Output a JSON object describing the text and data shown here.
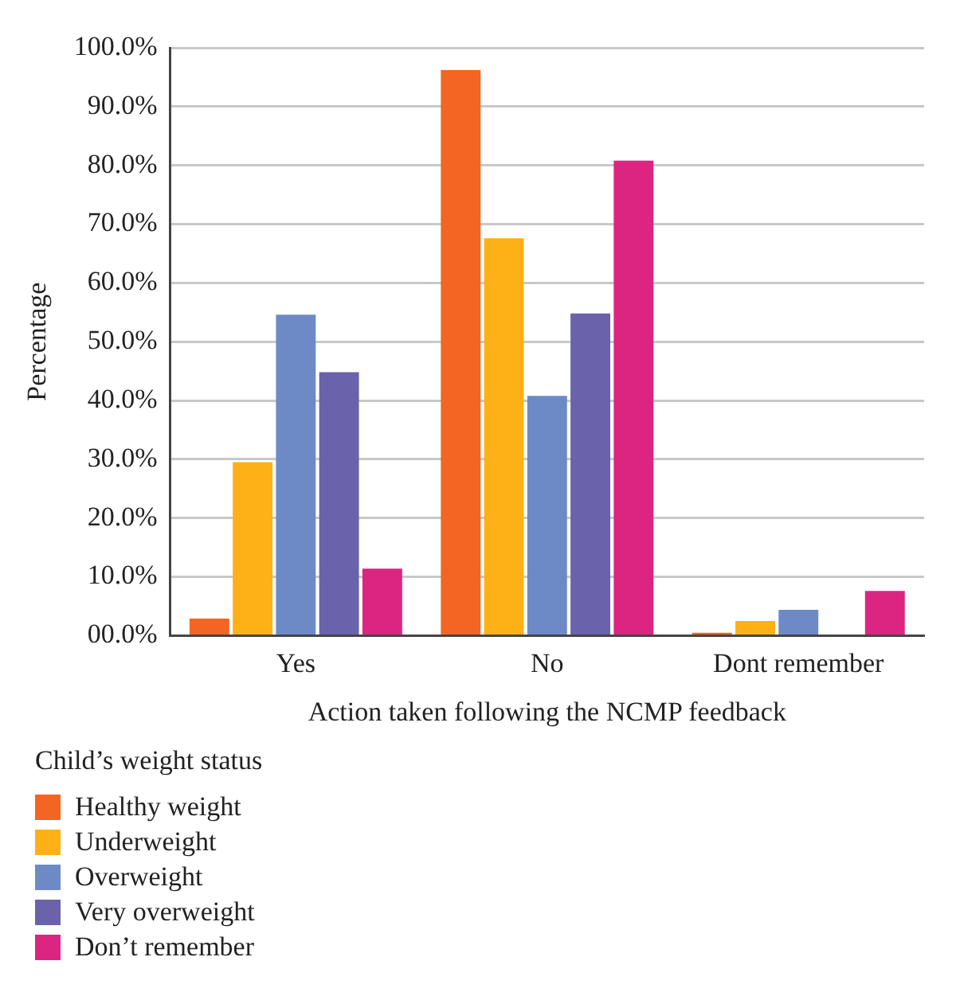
{
  "chart_data": {
    "type": "bar",
    "xlabel": "Action taken following the NCMP feedback",
    "ylabel": "Percentage",
    "legend_title": "Child’s weight status",
    "categories": [
      "Yes",
      "No",
      "Dont remember"
    ],
    "series": [
      {
        "name": "Healthy weight",
        "color": "#f26522",
        "values": [
          2.9,
          96.2,
          0.5
        ]
      },
      {
        "name": "Underweight",
        "color": "#fdb116",
        "values": [
          29.5,
          67.6,
          2.5
        ]
      },
      {
        "name": "Overweight",
        "color": "#6e8ac6",
        "values": [
          54.6,
          40.8,
          4.4
        ]
      },
      {
        "name": "Very overweight",
        "color": "#6a62aa",
        "values": [
          44.8,
          54.8,
          0
        ]
      },
      {
        "name": "Don’t remember",
        "color": "#dc2580",
        "values": [
          11.4,
          80.8,
          7.6
        ]
      }
    ],
    "ylim": [
      0,
      100
    ],
    "yticks": [
      {
        "value": 0,
        "label": "00.0%"
      },
      {
        "value": 10,
        "label": "10.0%"
      },
      {
        "value": 20,
        "label": "20.0%"
      },
      {
        "value": 30,
        "label": "30.0%"
      },
      {
        "value": 40,
        "label": "40.0%"
      },
      {
        "value": 50,
        "label": "50.0%"
      },
      {
        "value": 60,
        "label": "60.0%"
      },
      {
        "value": 70,
        "label": "70.0%"
      },
      {
        "value": 80,
        "label": "80.0%"
      },
      {
        "value": 90,
        "label": "90.0%"
      },
      {
        "value": 100,
        "label": "100.0%"
      }
    ],
    "grid": "y",
    "legend": "bottom left"
  }
}
